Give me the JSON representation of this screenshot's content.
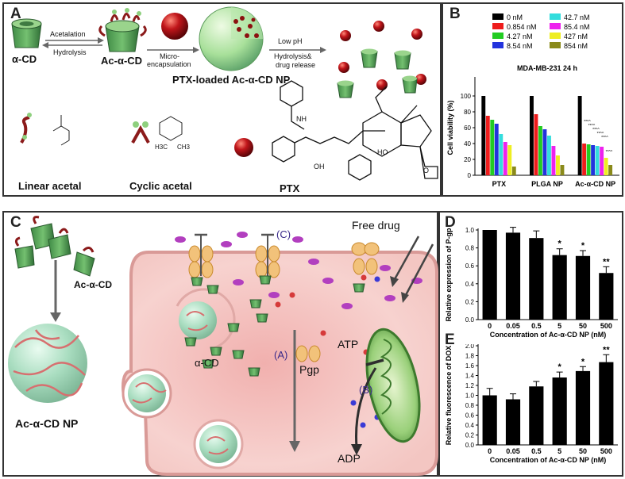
{
  "panels": {
    "a": {
      "label": "A",
      "acetalation": "Acetalation",
      "hydrolysis": "Hydrolysis",
      "alpha_cd": "α-CD",
      "ac_alpha_cd": "Ac-α-CD",
      "micro": "Micro-",
      "encapsulation": "encapsulation",
      "ptx_np": "PTX-loaded Ac-α-CD NP",
      "low_ph": "Low pH",
      "hydrolysis_amp": "Hydrolysis&",
      "drug_release": "drug release",
      "linear_acetal": "Linear acetal",
      "cyclic_acetal": "Cyclic acetal",
      "ptx": "PTX",
      "struct": {
        "ho": "HO",
        "ch3_a": "H3C",
        "ch3_b": "CH3",
        "nh": "NH",
        "oh": "OH",
        "o": "O"
      }
    },
    "b": {
      "label": "B"
    },
    "c": {
      "label": "C",
      "ac_alpha_cd": "Ac-α-CD",
      "ac_alpha_cd_np": "Ac-α-CD NP",
      "pathway_c": "(C)",
      "pathway_a": "(A)",
      "pathway_b": "(B)",
      "free_drug": "Free drug",
      "alpha_cd": "α-CD",
      "pgp": "Pgp",
      "atp": "ATP",
      "adp": "ADP"
    },
    "d": {
      "label": "D"
    },
    "e": {
      "label": "E"
    }
  },
  "chart_data": [
    {
      "id": "B",
      "type": "bar",
      "title": "MDA-MB-231 24 h",
      "ylabel": "Cell viability (%)",
      "xlabel": "",
      "ylim": [
        0,
        120
      ],
      "yticks": [
        0,
        20,
        40,
        60,
        80,
        100
      ],
      "categories": [
        "PTX",
        "PLGA NP",
        "Ac-α-CD NP"
      ],
      "legend_position": "top",
      "series": [
        {
          "name": "0 nM",
          "color": "#000000",
          "values": [
            100,
            100,
            100
          ]
        },
        {
          "name": "0.854 nM",
          "color": "#ee1c1c",
          "values": [
            75,
            77,
            40
          ]
        },
        {
          "name": "4.27 nM",
          "color": "#22cc22",
          "values": [
            70,
            62,
            39
          ]
        },
        {
          "name": "8.54 nM",
          "color": "#2233dd",
          "values": [
            65,
            58,
            38
          ]
        },
        {
          "name": "42.7 nM",
          "color": "#33dddd",
          "values": [
            52,
            50,
            37
          ]
        },
        {
          "name": "85.4 nM",
          "color": "#ee22ee",
          "values": [
            42,
            37,
            36
          ]
        },
        {
          "name": "427 nM",
          "color": "#eeee22",
          "values": [
            38,
            25,
            22
          ]
        },
        {
          "name": "854 nM",
          "color": "#8a8a1a",
          "values": [
            11,
            13,
            13
          ]
        }
      ],
      "annotations": [
        "**^^",
        "**^^",
        "**^^",
        "**^^",
        "**^^",
        "**^^"
      ]
    },
    {
      "id": "D",
      "type": "bar",
      "ylabel": "Relative expression of P-gp",
      "xlabel": "Concentration of Ac-α-CD NP (nM)",
      "ylim": [
        0,
        1.0
      ],
      "yticks": [
        0.0,
        0.2,
        0.4,
        0.6,
        0.8,
        1.0
      ],
      "categories": [
        "0",
        "0.05",
        "0.5",
        "5",
        "50",
        "500"
      ],
      "values": [
        1.0,
        0.97,
        0.91,
        0.72,
        0.71,
        0.52
      ],
      "errors": [
        0.0,
        0.06,
        0.08,
        0.07,
        0.06,
        0.07
      ],
      "significance": [
        "",
        "",
        "",
        "*",
        "*",
        "**"
      ]
    },
    {
      "id": "E",
      "type": "bar",
      "ylabel": "Relative fluorescence of DOX",
      "xlabel": "Concentration of Ac-α-CD NP (nM)",
      "ylim": [
        0,
        2.0
      ],
      "yticks": [
        0.0,
        0.2,
        0.4,
        0.6,
        0.8,
        1.0,
        1.2,
        1.4,
        1.6,
        1.8,
        2.0
      ],
      "categories": [
        "0",
        "0.05",
        "0.5",
        "5",
        "50",
        "500"
      ],
      "values": [
        1.0,
        0.92,
        1.18,
        1.36,
        1.49,
        1.67
      ],
      "errors": [
        0.14,
        0.11,
        0.1,
        0.11,
        0.09,
        0.15
      ],
      "significance": [
        "",
        "",
        "",
        "*",
        "*",
        "**"
      ]
    }
  ]
}
